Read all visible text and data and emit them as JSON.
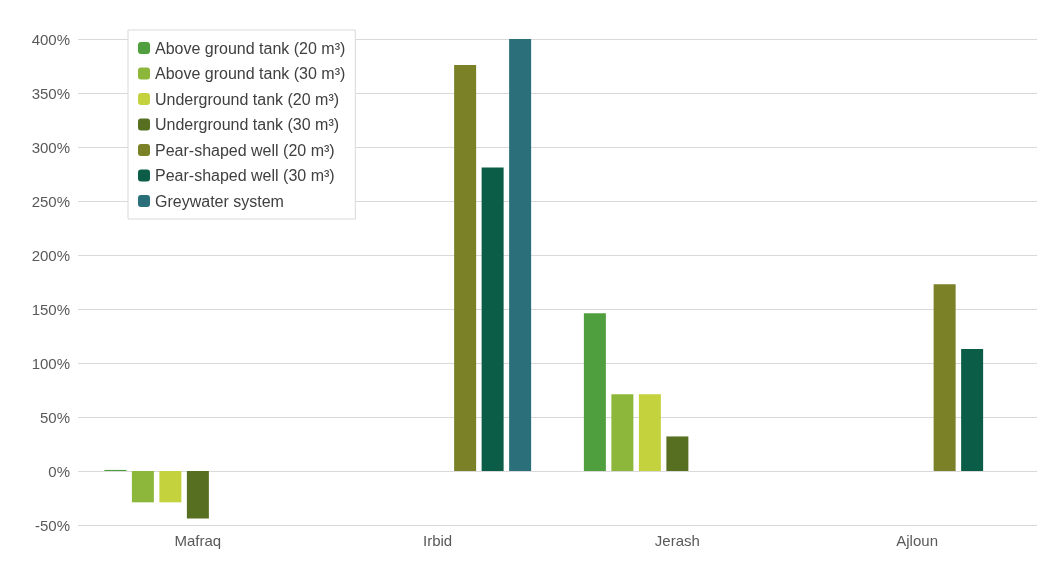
{
  "chart_data": {
    "type": "bar",
    "categories": [
      "Mafraq",
      "Irbid",
      "Jerash",
      "Ajloun"
    ],
    "series": [
      {
        "name": "Above ground tank (20 m³)",
        "color": "#4f9f3e",
        "values": [
          1,
          null,
          146,
          null
        ]
      },
      {
        "name": "Above ground tank (30 m³)",
        "color": "#8cb73a",
        "values": [
          -29,
          null,
          71,
          null
        ]
      },
      {
        "name": "Underground tank (20 m³)",
        "color": "#c4d23e",
        "values": [
          -29,
          null,
          71,
          null
        ]
      },
      {
        "name": "Underground tank (30 m³)",
        "color": "#566f21",
        "values": [
          -44,
          null,
          32,
          null
        ]
      },
      {
        "name": "Pear-shaped well (20 m³)",
        "color": "#7a8126",
        "values": [
          null,
          376,
          null,
          173
        ]
      },
      {
        "name": "Pear-shaped well (30 m³)",
        "color": "#0b5d48",
        "values": [
          null,
          281,
          null,
          113
        ]
      },
      {
        "name": "Greywater system",
        "color": "#2a6f79",
        "values": [
          null,
          400,
          null,
          null
        ]
      }
    ],
    "ylim": [
      -50,
      400
    ],
    "yticks": [
      {
        "value": -50,
        "label": "-50%"
      },
      {
        "value": 0,
        "label": "0%"
      },
      {
        "value": 50,
        "label": "50%"
      },
      {
        "value": 100,
        "label": "100%"
      },
      {
        "value": 150,
        "label": "150%"
      },
      {
        "value": 200,
        "label": "200%"
      },
      {
        "value": 250,
        "label": "250%"
      },
      {
        "value": 300,
        "label": "300%"
      },
      {
        "value": 350,
        "label": "350%"
      },
      {
        "value": 400,
        "label": "400%"
      }
    ],
    "grid": "y",
    "legend": "top left"
  }
}
